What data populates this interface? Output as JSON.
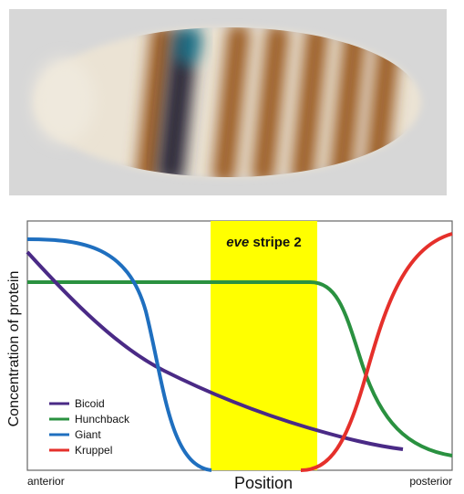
{
  "image": {
    "subject": "Drosophila embryo stained for eve stripes",
    "colors": {
      "background": "#d6d6d6",
      "embryo": "#e9dfcf",
      "stripe": "#9a5a22",
      "dark_stripe": "#2b2a3d",
      "blue_spot": "#1f5f78"
    }
  },
  "diagram": {
    "highlight_label_italic": "eve",
    "highlight_label_rest": " stripe 2",
    "highlight_color": "#ffff00",
    "xlabel": "Position",
    "ylabel": "Concentration of protein",
    "x_left_label": "anterior",
    "x_right_label": "posterior",
    "legend": [
      {
        "name": "Bicoid",
        "color": "#4a2a86"
      },
      {
        "name": "Hunchback",
        "color": "#2a9140"
      },
      {
        "name": "Giant",
        "color": "#1f6fbf"
      },
      {
        "name": "Kruppel",
        "color": "#e5302b"
      }
    ]
  }
}
